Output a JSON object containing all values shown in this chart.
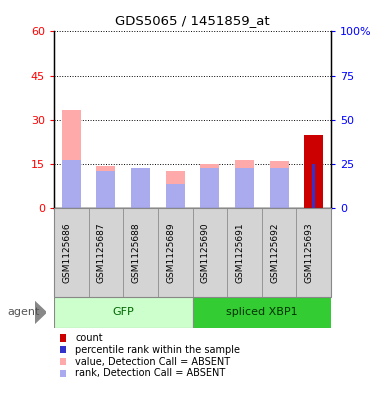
{
  "title": "GDS5065 / 1451859_at",
  "samples": [
    "GSM1125686",
    "GSM1125687",
    "GSM1125688",
    "GSM1125689",
    "GSM1125690",
    "GSM1125691",
    "GSM1125692",
    "GSM1125693"
  ],
  "value_absent": [
    33.5,
    14.5,
    13.5,
    12.5,
    15.0,
    16.5,
    16.0,
    0
  ],
  "rank_absent": [
    27.5,
    21.0,
    22.5,
    13.5,
    22.5,
    22.5,
    22.5,
    0
  ],
  "count": [
    0,
    0,
    0,
    0,
    0,
    0,
    0,
    25
  ],
  "percentile_rank": [
    0,
    0,
    0,
    0,
    0,
    0,
    0,
    25
  ],
  "ylim_left": [
    0,
    60
  ],
  "ylim_right": [
    0,
    100
  ],
  "yticks_left": [
    0,
    15,
    30,
    45,
    60
  ],
  "yticks_right": [
    0,
    25,
    50,
    75,
    100
  ],
  "ytick_labels_right": [
    "0",
    "25",
    "50",
    "75",
    "100%"
  ],
  "color_count": "#cc0000",
  "color_rank": "#3333cc",
  "color_value_absent": "#ffaaaa",
  "color_rank_absent": "#aaaaee",
  "gfp_color": "#ccffcc",
  "xbp1_color": "#33cc33",
  "gfp_label_color": "#006600",
  "xbp1_label_color": "#003300",
  "legend_items": [
    {
      "label": "count",
      "color": "#cc0000"
    },
    {
      "label": "percentile rank within the sample",
      "color": "#3333cc"
    },
    {
      "label": "value, Detection Call = ABSENT",
      "color": "#ffaaaa"
    },
    {
      "label": "rank, Detection Call = ABSENT",
      "color": "#aaaaee"
    }
  ]
}
